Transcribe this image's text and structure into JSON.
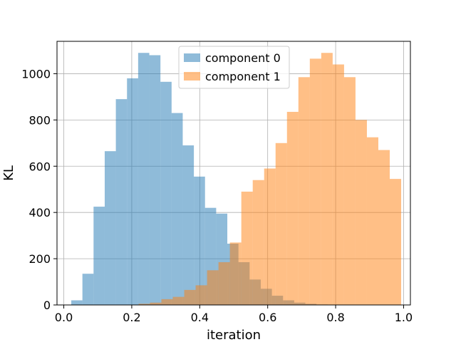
{
  "chart_data": {
    "type": "bar",
    "subtype": "histogram",
    "title": "",
    "xlabel": "iteration",
    "ylabel": "KL",
    "xlim": [
      -0.02,
      1.02
    ],
    "ylim": [
      0,
      1140
    ],
    "xticks": [
      0.0,
      0.2,
      0.4,
      0.6,
      0.8,
      1.0
    ],
    "xtick_labels": [
      "0.0",
      "0.2",
      "0.4",
      "0.6",
      "0.8",
      "1.0"
    ],
    "yticks": [
      0,
      200,
      400,
      600,
      800,
      1000
    ],
    "ytick_labels": [
      "0",
      "200",
      "400",
      "600",
      "800",
      "1000"
    ],
    "grid": true,
    "legend_position": "top-center",
    "overlap_color": "#c8a078",
    "series": [
      {
        "name": "component 0",
        "color": "#1f77b4",
        "opacity": 0.5,
        "bin_edges": [
          0.022,
          0.0548,
          0.0876,
          0.1204,
          0.1532,
          0.186,
          0.2188,
          0.2516,
          0.2844,
          0.3172,
          0.35,
          0.3828,
          0.4156,
          0.4484,
          0.4812,
          0.514,
          0.5468,
          0.5796,
          0.6124,
          0.6452,
          0.678,
          0.7108,
          0.7436,
          0.7764
        ],
        "counts": [
          20,
          135,
          425,
          665,
          890,
          980,
          1090,
          1080,
          965,
          830,
          690,
          555,
          420,
          395,
          265,
          185,
          110,
          70,
          40,
          20,
          10,
          5,
          2
        ]
      },
      {
        "name": "component 1",
        "color": "#ff7f0e",
        "opacity": 0.5,
        "bin_edges": [
          0.22,
          0.2536,
          0.2872,
          0.3208,
          0.3544,
          0.388,
          0.4216,
          0.4552,
          0.4888,
          0.5224,
          0.556,
          0.5896,
          0.6232,
          0.6568,
          0.6904,
          0.724,
          0.7576,
          0.7912,
          0.8248,
          0.8584,
          0.892,
          0.9256,
          0.9592,
          0.9928
        ],
        "counts": [
          5,
          10,
          25,
          35,
          65,
          85,
          150,
          185,
          270,
          490,
          540,
          590,
          700,
          835,
          985,
          1065,
          1090,
          1040,
          985,
          800,
          725,
          670,
          545
        ]
      }
    ]
  }
}
